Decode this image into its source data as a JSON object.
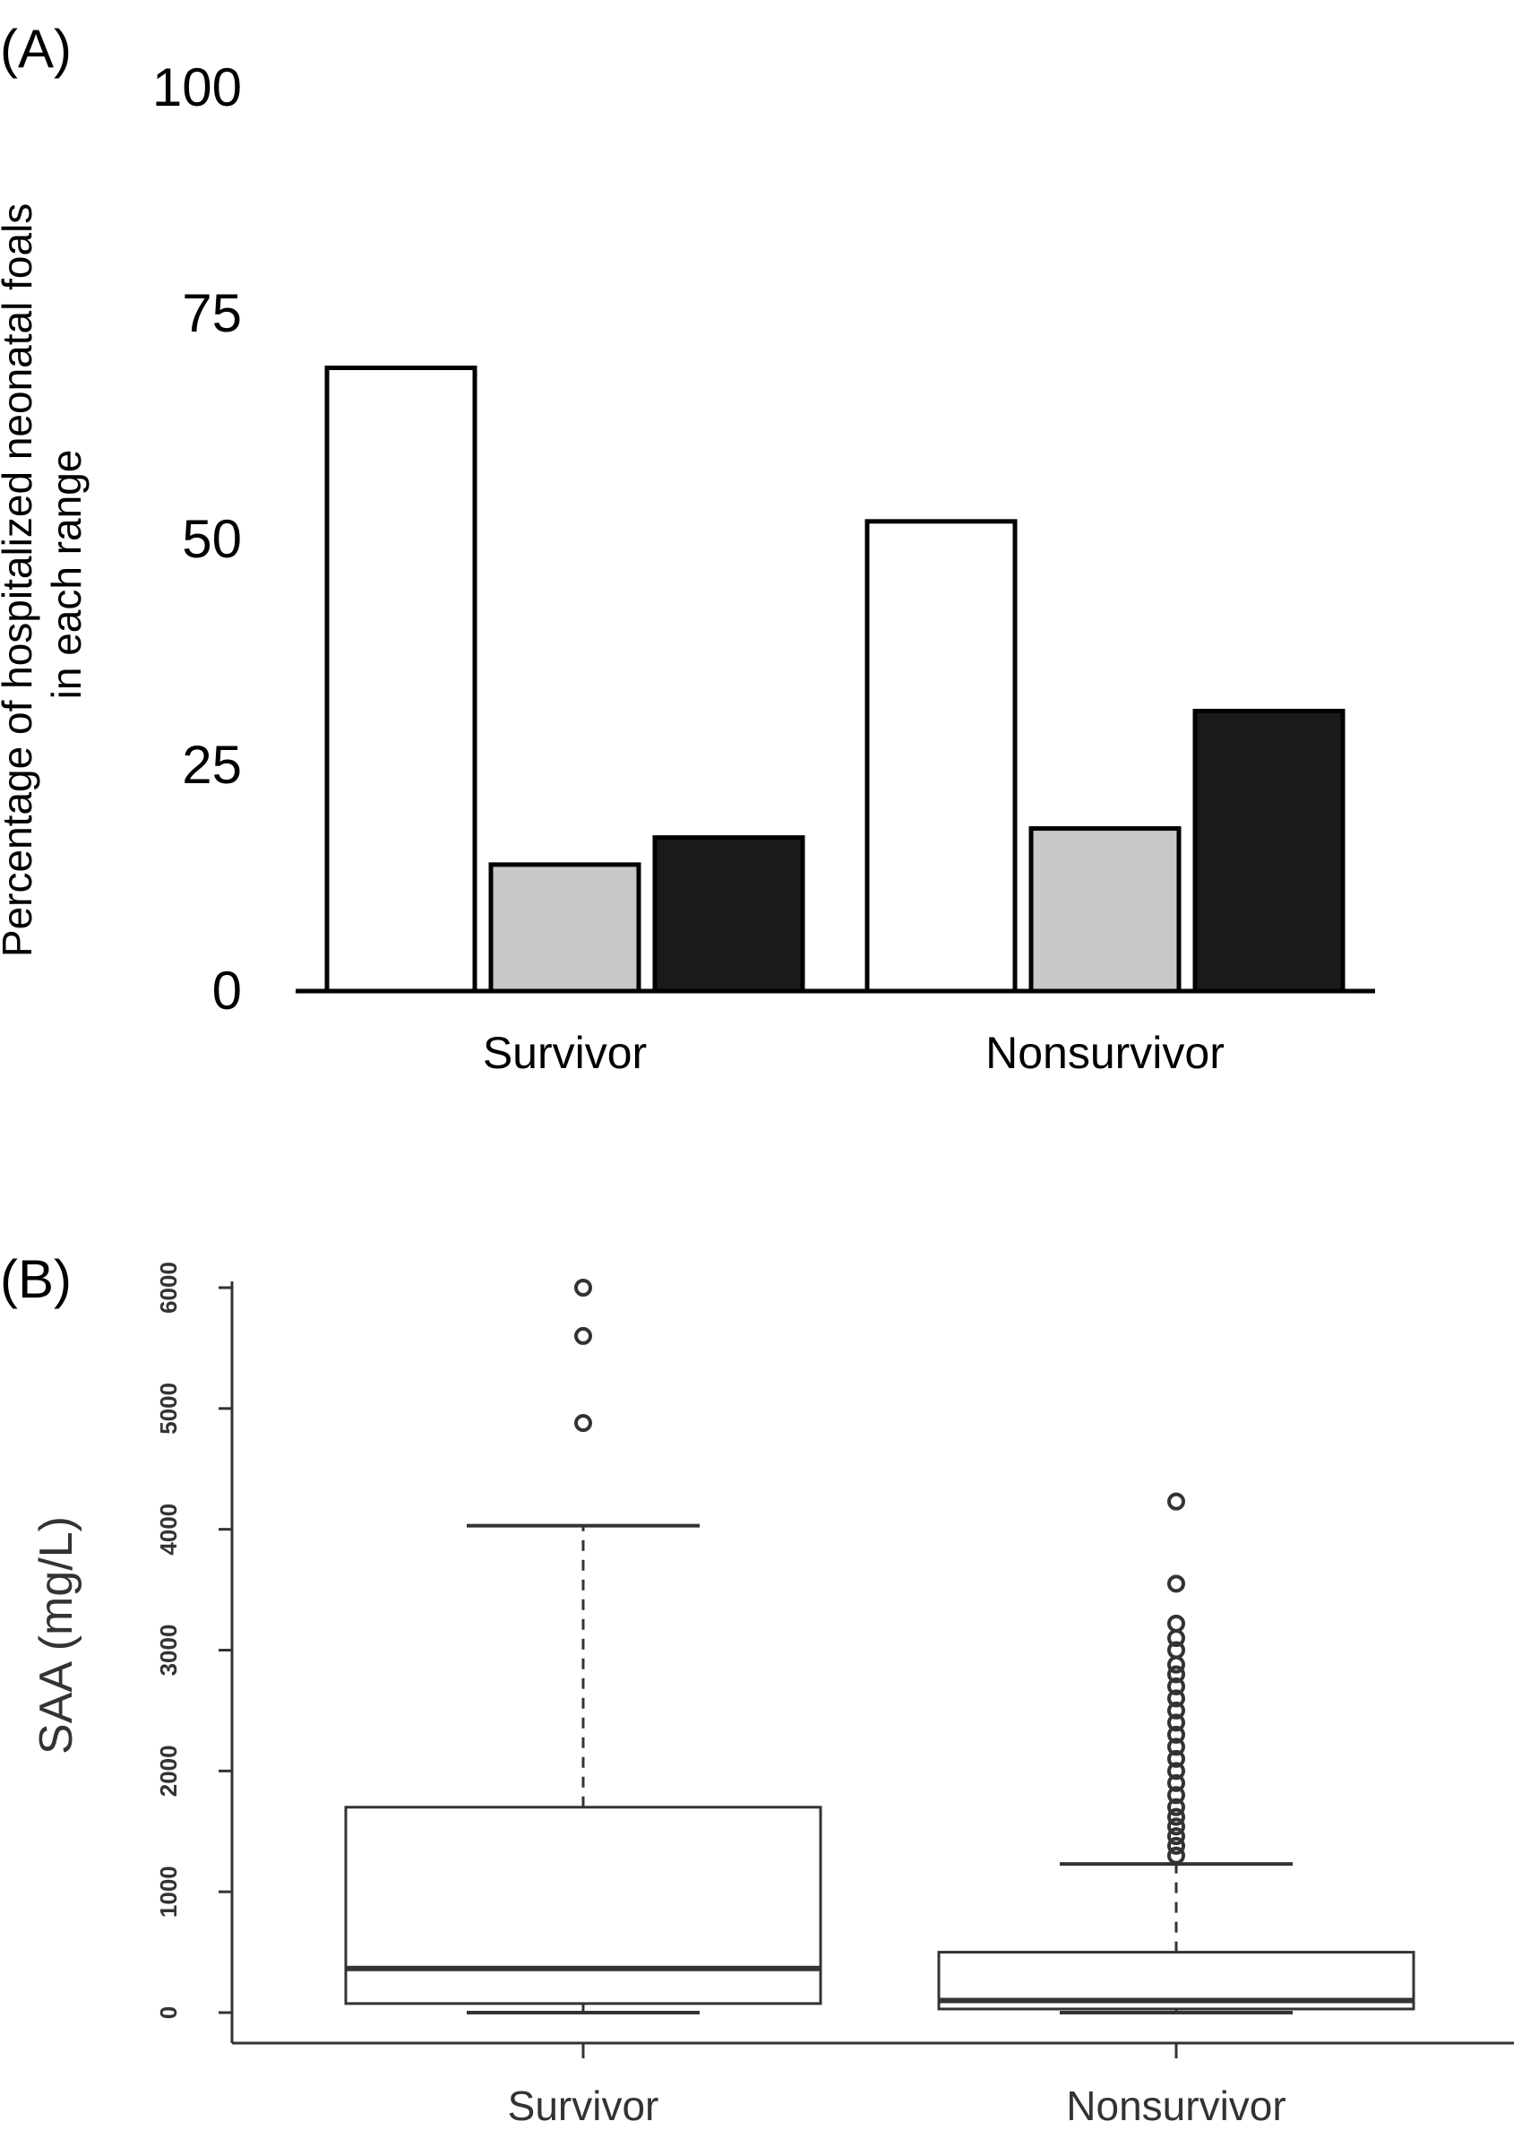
{
  "chart_data": [
    {
      "panel_label": "(A)",
      "type": "bar",
      "categories": [
        "Survivor",
        "Nonsurvivor"
      ],
      "series": [
        {
          "values": [
            69,
            52
          ],
          "color": "#ffffff"
        },
        {
          "values": [
            14,
            18
          ],
          "color": "#c8c8c8"
        },
        {
          "values": [
            17,
            31
          ],
          "color": "#1a1a1a"
        }
      ],
      "ylabel": [
        "Percentage of hospitalized neonatal foals",
        "in each range"
      ],
      "ylim": [
        0,
        100
      ],
      "yticks": [
        "0",
        "25",
        "50",
        "75",
        "100"
      ],
      "grid": false,
      "legend": "none"
    },
    {
      "panel_label": "(B)",
      "type": "box",
      "categories": [
        "Survivor",
        "Nonsurvivor"
      ],
      "ylabel": "SAA (mg/L)",
      "ylim": [
        0,
        6000
      ],
      "yticks": [
        "0",
        "1000",
        "2000",
        "3000",
        "4000",
        "5000",
        "6000"
      ],
      "boxes": [
        {
          "name": "Survivor",
          "min": 0,
          "q1": 75,
          "median": 365,
          "q3": 1700,
          "max": 4030,
          "outliers": [
            4880,
            5600,
            6000
          ]
        },
        {
          "name": "Nonsurvivor",
          "min": 0,
          "q1": 30,
          "median": 100,
          "q3": 500,
          "max": 1230,
          "outliers": [
            1300,
            1380,
            1460,
            1540,
            1620,
            1700,
            1800,
            1900,
            2000,
            2100,
            2200,
            2300,
            2400,
            2500,
            2600,
            2700,
            2800,
            2880,
            3000,
            3100,
            3220,
            3550,
            4230
          ]
        }
      ],
      "grid": false
    }
  ]
}
